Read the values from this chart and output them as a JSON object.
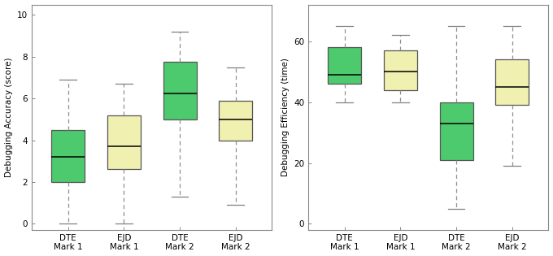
{
  "left": {
    "ylabel": "Debugging Accuracy (score)",
    "ylim": [
      -0.3,
      10.5
    ],
    "yticks": [
      0,
      2,
      4,
      6,
      8,
      10
    ],
    "boxes": [
      {
        "label": "DTE\nMark 1",
        "color": "#4dca6e",
        "whislo": 0.0,
        "q1": 2.0,
        "med": 3.2,
        "q3": 4.5,
        "whishi": 6.9
      },
      {
        "label": "EJD\nMark 1",
        "color": "#f0f0b0",
        "whislo": 0.0,
        "q1": 2.6,
        "med": 3.7,
        "q3": 5.2,
        "whishi": 6.7
      },
      {
        "label": "DTE\nMark 2",
        "color": "#4dca6e",
        "whislo": 1.3,
        "q1": 5.0,
        "med": 6.25,
        "q3": 7.75,
        "whishi": 9.2
      },
      {
        "label": "EJD\nMark 2",
        "color": "#f0f0b0",
        "whislo": 0.9,
        "q1": 4.0,
        "med": 5.0,
        "q3": 5.9,
        "whishi": 7.5
      }
    ]
  },
  "right": {
    "ylabel": "Debugging Efficiency (time)",
    "ylim": [
      -2,
      72
    ],
    "yticks": [
      0,
      20,
      40,
      60
    ],
    "boxes": [
      {
        "label": "DTE\nMark 1",
        "color": "#4dca6e",
        "whislo": 40.0,
        "q1": 46.0,
        "med": 49.0,
        "q3": 58.0,
        "whishi": 65.0
      },
      {
        "label": "EJD\nMark 1",
        "color": "#f0f0b0",
        "whislo": 40.0,
        "q1": 44.0,
        "med": 50.0,
        "q3": 57.0,
        "whishi": 62.0
      },
      {
        "label": "DTE\nMark 2",
        "color": "#4dca6e",
        "whislo": 5.0,
        "q1": 21.0,
        "med": 33.0,
        "q3": 40.0,
        "whishi": 65.0
      },
      {
        "label": "EJD\nMark 2",
        "color": "#f0f0b0",
        "whislo": 19.0,
        "q1": 39.0,
        "med": 45.0,
        "q3": 54.0,
        "whishi": 65.0
      }
    ]
  },
  "box_width": 0.6,
  "whisker_color": "#909090",
  "cap_color": "#808080",
  "median_color": "#000000",
  "box_edge_color": "#555555",
  "background_color": "#ffffff",
  "font_size": 7.5,
  "label_fontsize": 7.5,
  "ylabel_fontsize": 7.5
}
